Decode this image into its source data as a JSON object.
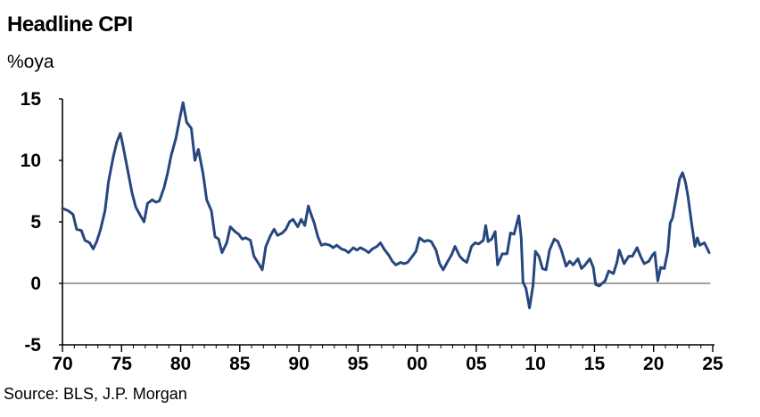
{
  "chart_data": {
    "type": "line",
    "title": "Headline CPI",
    "subtitle": "%oya",
    "source": "Source: BLS, J.P. Morgan",
    "xlabel": "",
    "ylabel": "",
    "xlim": [
      1970,
      2025
    ],
    "ylim": [
      -5,
      15
    ],
    "y_ticks": [
      15,
      10,
      5,
      0,
      -5
    ],
    "x_ticks": [
      {
        "year": 1970,
        "label": "70"
      },
      {
        "year": 1975,
        "label": "75"
      },
      {
        "year": 1980,
        "label": "80"
      },
      {
        "year": 1985,
        "label": "85"
      },
      {
        "year": 1990,
        "label": "90"
      },
      {
        "year": 1995,
        "label": "95"
      },
      {
        "year": 2000,
        "label": "00"
      },
      {
        "year": 2005,
        "label": "05"
      },
      {
        "year": 2010,
        "label": "10"
      },
      {
        "year": 2015,
        "label": "15"
      },
      {
        "year": 2020,
        "label": "20"
      },
      {
        "year": 2025,
        "label": "25"
      }
    ],
    "grid": false,
    "series_color": "#27467f",
    "series": [
      {
        "name": "",
        "points": [
          [
            1970.0,
            6.1
          ],
          [
            1970.5,
            5.9
          ],
          [
            1970.9,
            5.6
          ],
          [
            1971.2,
            4.4
          ],
          [
            1971.6,
            4.3
          ],
          [
            1971.9,
            3.5
          ],
          [
            1972.3,
            3.3
          ],
          [
            1972.6,
            2.8
          ],
          [
            1972.9,
            3.4
          ],
          [
            1973.2,
            4.3
          ],
          [
            1973.6,
            5.9
          ],
          [
            1973.9,
            8.3
          ],
          [
            1974.3,
            10.3
          ],
          [
            1974.6,
            11.5
          ],
          [
            1974.9,
            12.2
          ],
          [
            1975.1,
            11.3
          ],
          [
            1975.5,
            9.3
          ],
          [
            1975.9,
            7.3
          ],
          [
            1976.2,
            6.2
          ],
          [
            1976.6,
            5.5
          ],
          [
            1976.9,
            5.0
          ],
          [
            1977.2,
            6.5
          ],
          [
            1977.6,
            6.8
          ],
          [
            1977.9,
            6.6
          ],
          [
            1978.2,
            6.7
          ],
          [
            1978.6,
            7.8
          ],
          [
            1978.9,
            9.0
          ],
          [
            1979.2,
            10.4
          ],
          [
            1979.6,
            11.8
          ],
          [
            1979.9,
            13.3
          ],
          [
            1980.2,
            14.7
          ],
          [
            1980.5,
            13.1
          ],
          [
            1980.9,
            12.6
          ],
          [
            1981.2,
            10.0
          ],
          [
            1981.5,
            10.9
          ],
          [
            1981.9,
            8.9
          ],
          [
            1982.2,
            6.8
          ],
          [
            1982.6,
            5.9
          ],
          [
            1982.9,
            3.8
          ],
          [
            1983.2,
            3.6
          ],
          [
            1983.5,
            2.5
          ],
          [
            1983.9,
            3.3
          ],
          [
            1984.2,
            4.6
          ],
          [
            1984.6,
            4.2
          ],
          [
            1984.9,
            4.0
          ],
          [
            1985.2,
            3.6
          ],
          [
            1985.5,
            3.7
          ],
          [
            1985.9,
            3.5
          ],
          [
            1986.2,
            2.2
          ],
          [
            1986.6,
            1.6
          ],
          [
            1986.9,
            1.1
          ],
          [
            1987.2,
            3.0
          ],
          [
            1987.6,
            3.9
          ],
          [
            1987.9,
            4.4
          ],
          [
            1988.2,
            3.9
          ],
          [
            1988.6,
            4.1
          ],
          [
            1988.9,
            4.4
          ],
          [
            1989.2,
            5.0
          ],
          [
            1989.5,
            5.2
          ],
          [
            1989.9,
            4.6
          ],
          [
            1990.2,
            5.2
          ],
          [
            1990.5,
            4.7
          ],
          [
            1990.8,
            6.3
          ],
          [
            1991.0,
            5.7
          ],
          [
            1991.3,
            4.9
          ],
          [
            1991.6,
            3.8
          ],
          [
            1991.9,
            3.1
          ],
          [
            1992.2,
            3.2
          ],
          [
            1992.6,
            3.1
          ],
          [
            1992.9,
            2.9
          ],
          [
            1993.2,
            3.1
          ],
          [
            1993.6,
            2.8
          ],
          [
            1993.9,
            2.7
          ],
          [
            1994.2,
            2.5
          ],
          [
            1994.6,
            2.9
          ],
          [
            1994.9,
            2.7
          ],
          [
            1995.2,
            2.9
          ],
          [
            1995.6,
            2.7
          ],
          [
            1995.9,
            2.5
          ],
          [
            1996.2,
            2.8
          ],
          [
            1996.6,
            3.0
          ],
          [
            1996.9,
            3.3
          ],
          [
            1997.2,
            2.8
          ],
          [
            1997.6,
            2.3
          ],
          [
            1997.9,
            1.8
          ],
          [
            1998.2,
            1.5
          ],
          [
            1998.6,
            1.7
          ],
          [
            1998.9,
            1.6
          ],
          [
            1999.2,
            1.7
          ],
          [
            1999.6,
            2.2
          ],
          [
            1999.9,
            2.6
          ],
          [
            2000.2,
            3.7
          ],
          [
            2000.6,
            3.4
          ],
          [
            2000.9,
            3.5
          ],
          [
            2001.2,
            3.4
          ],
          [
            2001.6,
            2.7
          ],
          [
            2001.9,
            1.6
          ],
          [
            2002.2,
            1.1
          ],
          [
            2002.6,
            1.8
          ],
          [
            2002.9,
            2.3
          ],
          [
            2003.2,
            3.0
          ],
          [
            2003.6,
            2.2
          ],
          [
            2003.9,
            1.9
          ],
          [
            2004.2,
            1.7
          ],
          [
            2004.6,
            3.0
          ],
          [
            2004.9,
            3.3
          ],
          [
            2005.2,
            3.2
          ],
          [
            2005.6,
            3.5
          ],
          [
            2005.8,
            4.7
          ],
          [
            2006.0,
            3.4
          ],
          [
            2006.3,
            3.6
          ],
          [
            2006.6,
            4.2
          ],
          [
            2006.8,
            1.5
          ],
          [
            2007.2,
            2.4
          ],
          [
            2007.6,
            2.4
          ],
          [
            2007.9,
            4.1
          ],
          [
            2008.2,
            4.0
          ],
          [
            2008.6,
            5.5
          ],
          [
            2008.8,
            3.7
          ],
          [
            2008.95,
            0.1
          ],
          [
            2009.2,
            -0.4
          ],
          [
            2009.5,
            -2.0
          ],
          [
            2009.8,
            -0.2
          ],
          [
            2010.0,
            2.6
          ],
          [
            2010.3,
            2.2
          ],
          [
            2010.6,
            1.2
          ],
          [
            2010.9,
            1.1
          ],
          [
            2011.2,
            2.7
          ],
          [
            2011.6,
            3.6
          ],
          [
            2011.9,
            3.4
          ],
          [
            2012.2,
            2.7
          ],
          [
            2012.6,
            1.4
          ],
          [
            2012.9,
            1.8
          ],
          [
            2013.2,
            1.5
          ],
          [
            2013.6,
            2.0
          ],
          [
            2013.9,
            1.2
          ],
          [
            2014.2,
            1.5
          ],
          [
            2014.6,
            2.0
          ],
          [
            2014.9,
            1.3
          ],
          [
            2015.1,
            -0.1
          ],
          [
            2015.4,
            -0.2
          ],
          [
            2015.9,
            0.2
          ],
          [
            2016.2,
            1.0
          ],
          [
            2016.6,
            0.8
          ],
          [
            2016.9,
            1.7
          ],
          [
            2017.1,
            2.7
          ],
          [
            2017.5,
            1.6
          ],
          [
            2017.9,
            2.2
          ],
          [
            2018.2,
            2.2
          ],
          [
            2018.6,
            2.9
          ],
          [
            2018.9,
            2.2
          ],
          [
            2019.2,
            1.6
          ],
          [
            2019.6,
            1.8
          ],
          [
            2019.9,
            2.3
          ],
          [
            2020.1,
            2.5
          ],
          [
            2020.35,
            0.2
          ],
          [
            2020.6,
            1.3
          ],
          [
            2020.9,
            1.2
          ],
          [
            2021.2,
            2.6
          ],
          [
            2021.4,
            4.9
          ],
          [
            2021.6,
            5.3
          ],
          [
            2021.9,
            6.9
          ],
          [
            2022.2,
            8.5
          ],
          [
            2022.45,
            9.0
          ],
          [
            2022.7,
            8.2
          ],
          [
            2022.9,
            7.1
          ],
          [
            2023.2,
            5.0
          ],
          [
            2023.5,
            3.0
          ],
          [
            2023.7,
            3.7
          ],
          [
            2023.9,
            3.1
          ],
          [
            2024.1,
            3.2
          ],
          [
            2024.3,
            3.3
          ],
          [
            2024.5,
            2.9
          ],
          [
            2024.7,
            2.5
          ]
        ]
      }
    ]
  }
}
